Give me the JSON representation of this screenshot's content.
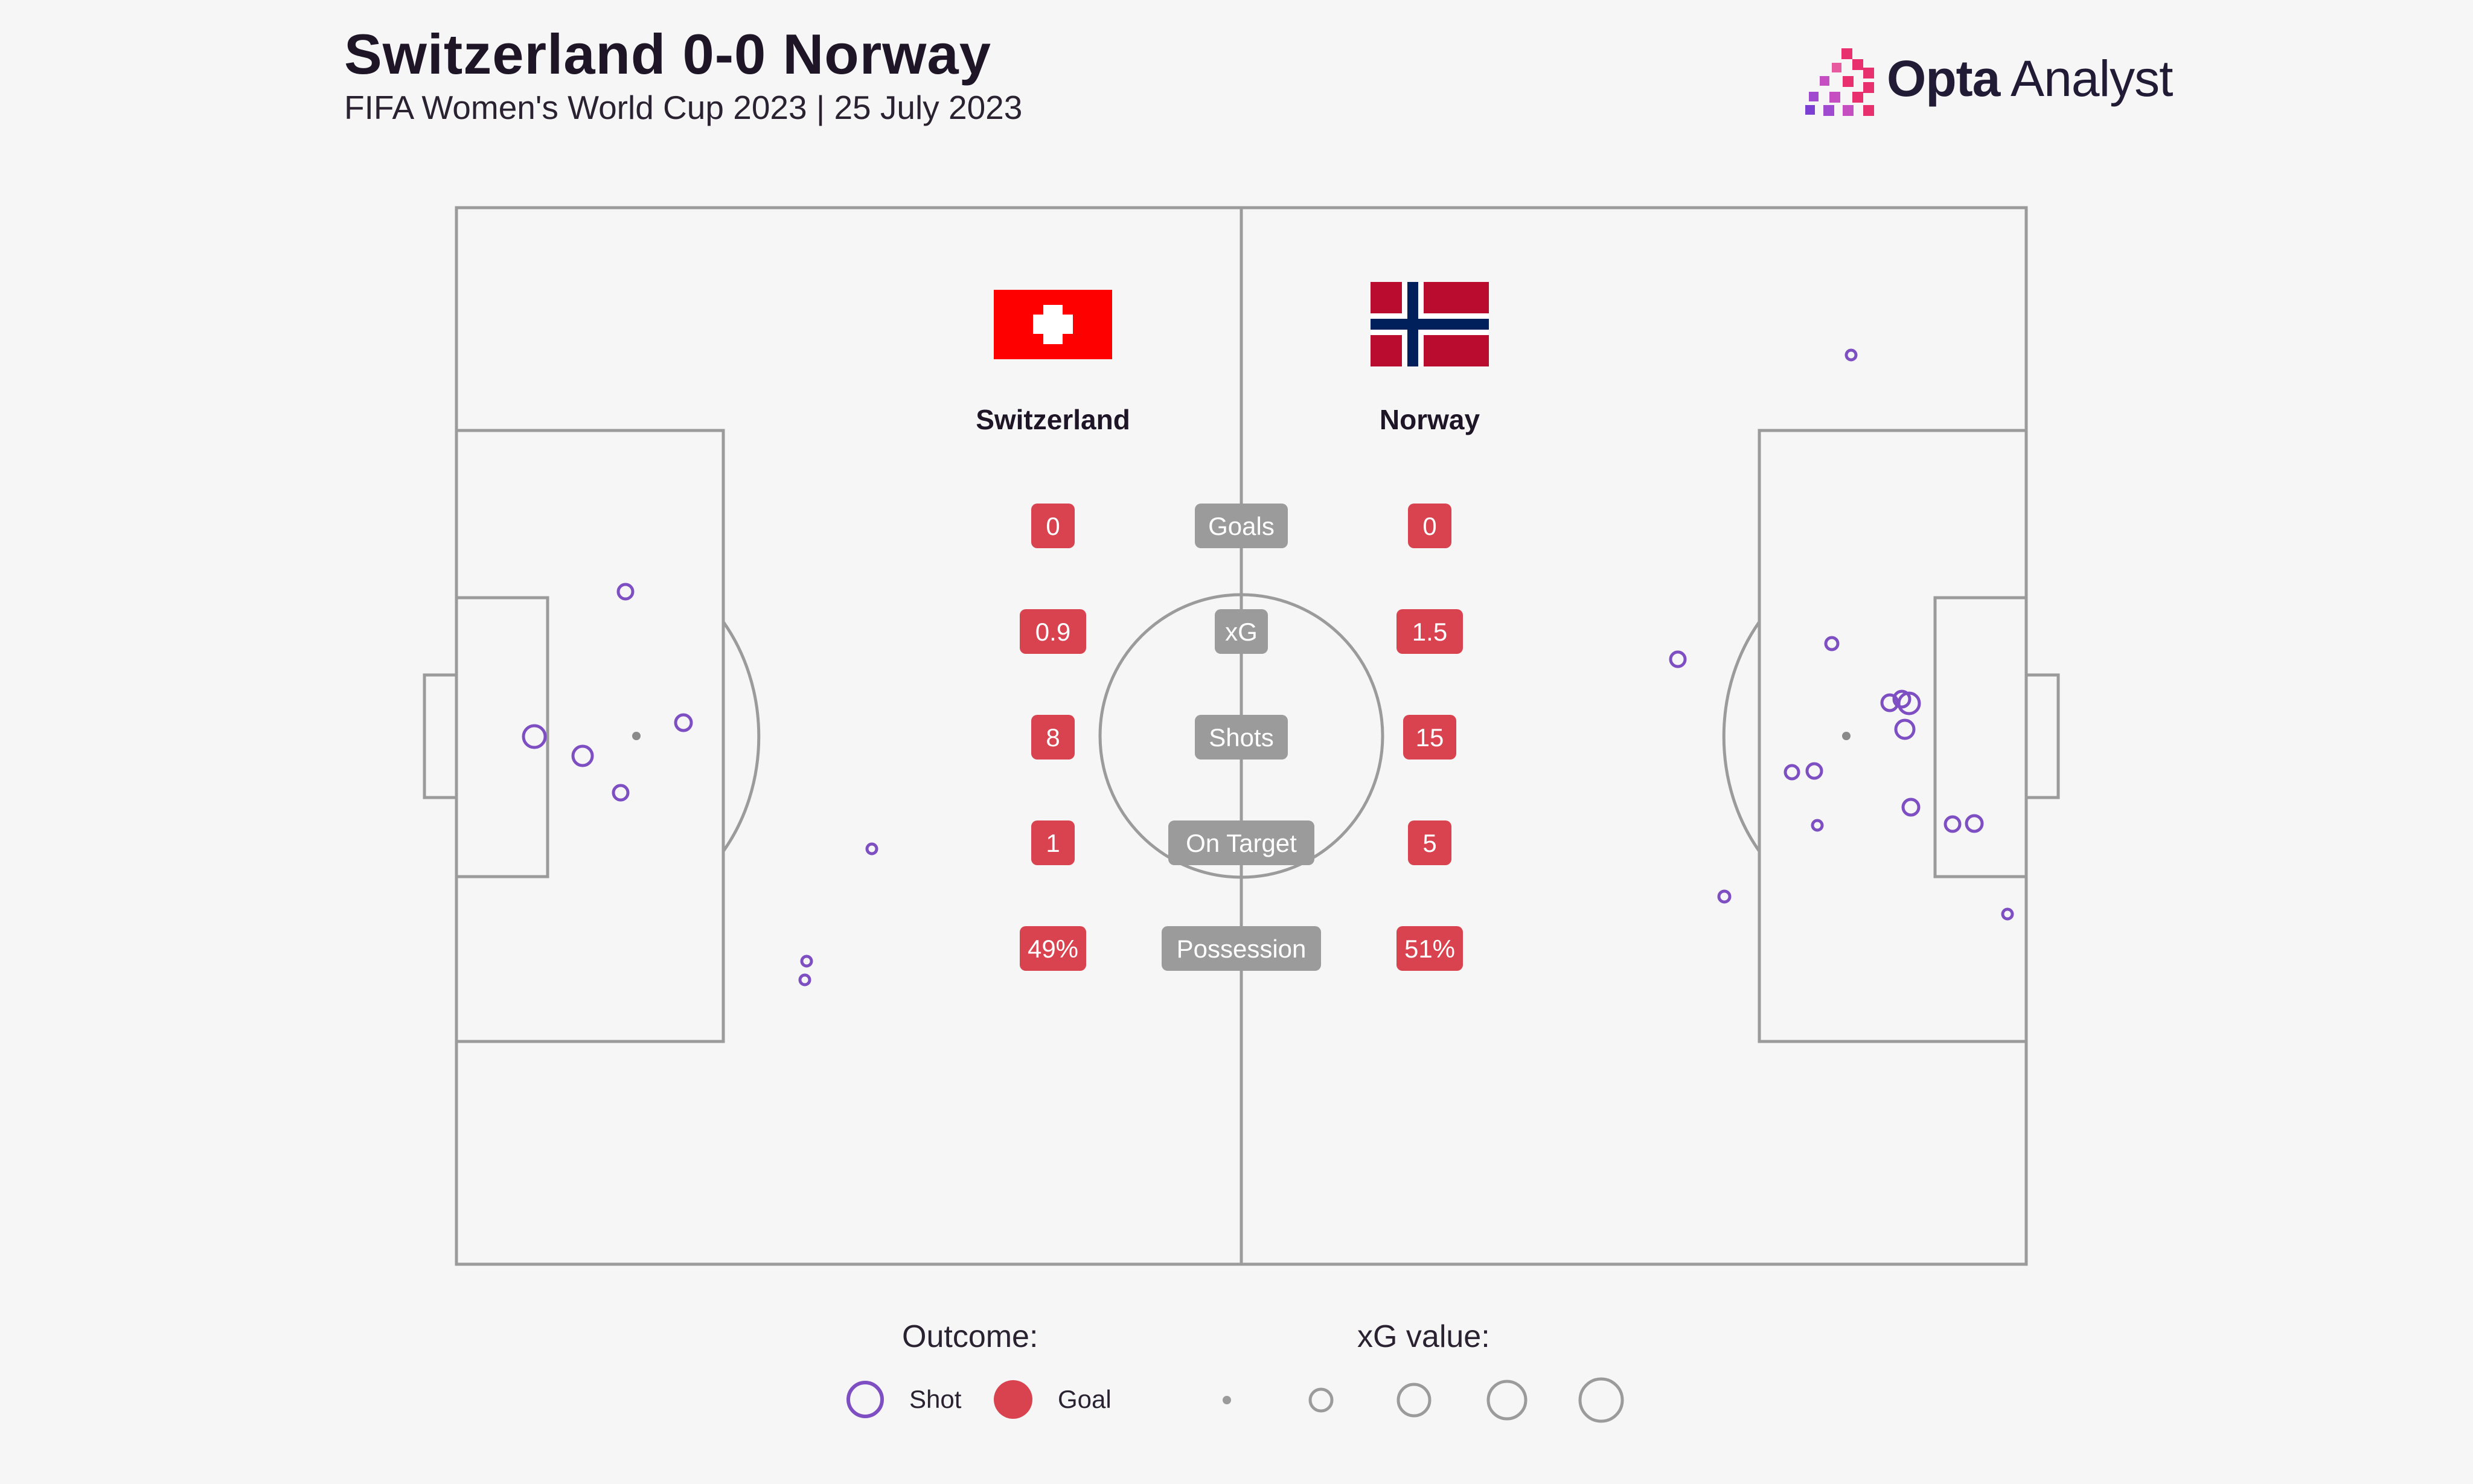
{
  "header": {
    "title": "Switzerland 0-0 Norway",
    "subtitle": "FIFA Women's World Cup 2023 | 25 July 2023"
  },
  "logo": {
    "brand": "Opta",
    "product": "Analyst"
  },
  "teams": {
    "home": {
      "name": "Switzerland",
      "flag": "switzerland-flag",
      "color": "#FF0000"
    },
    "away": {
      "name": "Norway",
      "flag": "norway-flag",
      "color": "#BA0C2F"
    }
  },
  "stats": [
    {
      "label": "Goals",
      "home": "0",
      "away": "0"
    },
    {
      "label": "xG",
      "home": "0.9",
      "away": "1.5"
    },
    {
      "label": "Shots",
      "home": "8",
      "away": "15"
    },
    {
      "label": "On Target",
      "home": "1",
      "away": "5"
    },
    {
      "label": "Possession",
      "home": "49%",
      "away": "51%"
    }
  ],
  "colors": {
    "stat_badge": "#D8434F",
    "stat_label": "#9B9B9B",
    "shot": "#7E4FC2",
    "goal": "#D8434F",
    "pitch_line": "#9B9B9B",
    "background": "#F6F6F6"
  },
  "legend": {
    "outcome_title": "Outcome:",
    "shot_label": "Shot",
    "goal_label": "Goal",
    "xg_title": "xG value:"
  }
}
